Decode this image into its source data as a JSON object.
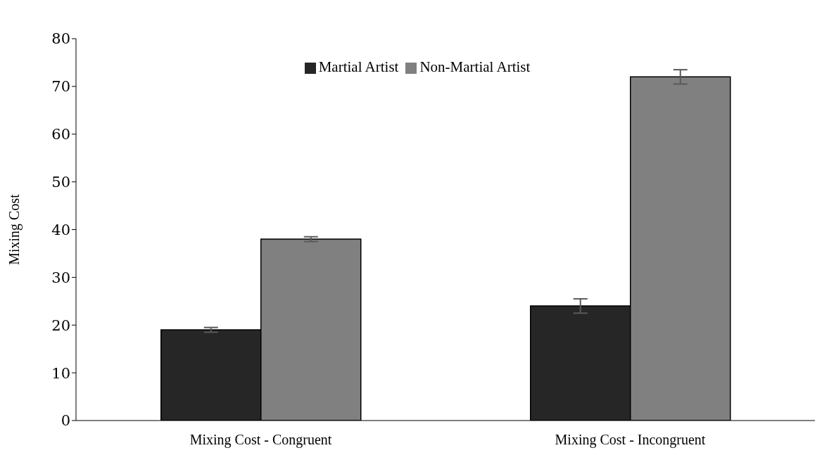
{
  "chart_data": {
    "type": "bar",
    "ylabel": "Mixing Cost",
    "categories": [
      "Mixing Cost - Congruent",
      "Mixing Cost - Incongruent"
    ],
    "series": [
      {
        "name": "Martial Artist",
        "color": "#262626",
        "values": [
          19,
          24
        ],
        "errors": [
          0.5,
          1.5
        ]
      },
      {
        "name": "Non-Martial Artist",
        "color": "#808080",
        "values": [
          38,
          72
        ],
        "errors": [
          0.5,
          1.5
        ]
      }
    ],
    "ylim": [
      0,
      80
    ],
    "yticks": [
      0,
      10,
      20,
      30,
      40,
      50,
      60,
      70,
      80
    ],
    "grid": false,
    "legend": "top"
  }
}
